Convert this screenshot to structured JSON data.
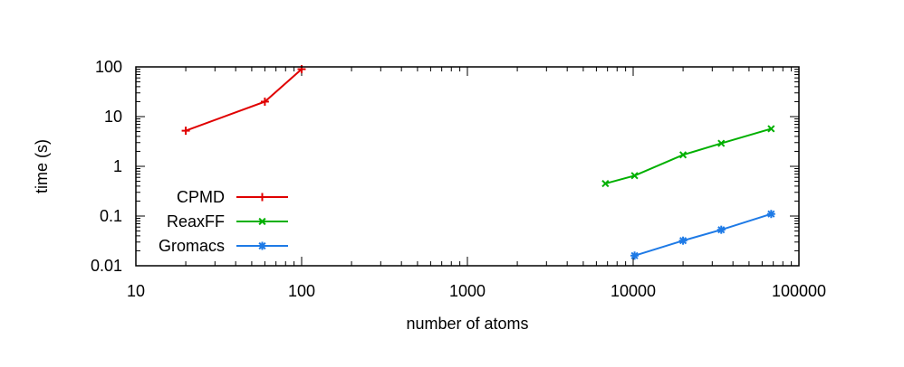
{
  "chart_data": {
    "type": "line",
    "title": "",
    "xlabel": "number of atoms",
    "ylabel": "time (s)",
    "x_scale": "log",
    "y_scale": "log",
    "xlim": [
      10,
      100000
    ],
    "ylim": [
      0.01,
      100
    ],
    "x_ticks": [
      {
        "value": 10,
        "label": "10"
      },
      {
        "value": 100,
        "label": "100"
      },
      {
        "value": 1000,
        "label": "1000"
      },
      {
        "value": 10000,
        "label": "10000"
      },
      {
        "value": 100000,
        "label": "100000"
      }
    ],
    "y_ticks": [
      {
        "value": 0.01,
        "label": "0.01"
      },
      {
        "value": 0.1,
        "label": "0.1"
      },
      {
        "value": 1,
        "label": "1"
      },
      {
        "value": 10,
        "label": "10"
      },
      {
        "value": 100,
        "label": "100"
      }
    ],
    "grid": false,
    "legend_position": "bottom-left",
    "series": [
      {
        "name": "CPMD",
        "color": "#e00000",
        "marker": "plus",
        "x": [
          20,
          60,
          100
        ],
        "y": [
          5.2,
          20,
          90
        ]
      },
      {
        "name": "ReaxFF",
        "color": "#00b000",
        "marker": "cross",
        "x": [
          6800,
          10200,
          20000,
          34000,
          68000
        ],
        "y": [
          0.45,
          0.65,
          1.7,
          2.9,
          5.7
        ]
      },
      {
        "name": "Gromacs",
        "color": "#1e7ae6",
        "marker": "star",
        "x": [
          10200,
          20000,
          34000,
          68000
        ],
        "y": [
          0.016,
          0.032,
          0.053,
          0.11
        ]
      }
    ]
  }
}
